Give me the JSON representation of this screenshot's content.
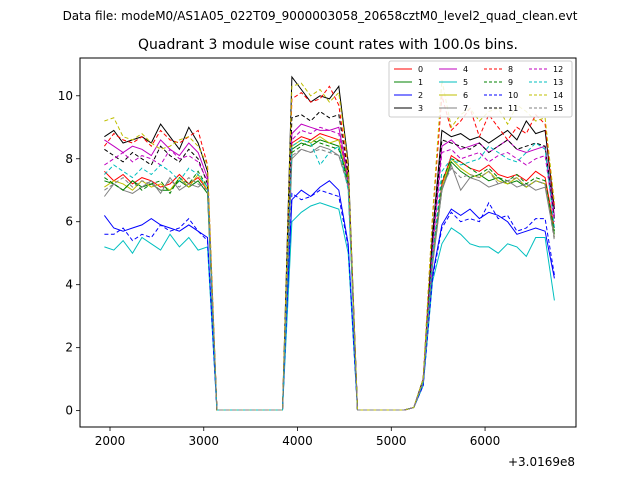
{
  "header": {
    "datafile": "Data file: modeM0/AS1A05_022T09_9000003058_20658cztM0_level2_quad_clean.evt"
  },
  "chart_data": {
    "type": "line",
    "title": "Quadrant 3 module wise count rates with 100.0s bins.",
    "xlabel": "",
    "ylabel": "",
    "x_offset_label": "+3.0169e8",
    "xlim": [
      1680,
      6970
    ],
    "ylim": [
      -0.52,
      11.2
    ],
    "x_ticks": [
      2000,
      3000,
      4000,
      5000,
      6000
    ],
    "x_tick_labels": [
      "2000",
      "3000",
      "4000",
      "5000",
      "6000"
    ],
    "y_ticks": [
      0,
      2,
      4,
      6,
      8,
      10
    ],
    "y_tick_labels": [
      "0",
      "2",
      "4",
      "6",
      "8",
      "10"
    ],
    "legend_position": "top-right",
    "x": [
      1940,
      2040,
      2140,
      2240,
      2340,
      2440,
      2540,
      2640,
      2740,
      2840,
      2940,
      3040,
      3140,
      3240,
      3340,
      3440,
      3540,
      3640,
      3740,
      3840,
      3940,
      4040,
      4140,
      4240,
      4340,
      4440,
      4540,
      4640,
      4740,
      4840,
      4940,
      5040,
      5140,
      5240,
      5340,
      5440,
      5540,
      5640,
      5740,
      5840,
      5940,
      6040,
      6140,
      6240,
      6340,
      6440,
      6540,
      6640,
      6740
    ],
    "series": [
      {
        "name": "0",
        "color": "#ff0000",
        "dash": false,
        "values": [
          7.6,
          7.3,
          7.5,
          7.2,
          7.4,
          7.3,
          7.1,
          7.2,
          7.5,
          7.2,
          7.4,
          7.0,
          0.02,
          0.02,
          0.02,
          0.02,
          0.02,
          0.02,
          0.02,
          0.02,
          8.5,
          8.7,
          8.6,
          8.8,
          8.7,
          8.6,
          7.5,
          0.02,
          0.02,
          0.02,
          0.02,
          0.02,
          0.02,
          0.1,
          0.9,
          4.8,
          7.2,
          8.1,
          7.9,
          7.7,
          7.6,
          7.8,
          7.5,
          7.4,
          7.5,
          7.3,
          7.6,
          7.4,
          5.8
        ]
      },
      {
        "name": "1",
        "color": "#008000",
        "dash": false,
        "values": [
          7.3,
          7.2,
          7.0,
          7.3,
          7.1,
          7.2,
          7.0,
          7.0,
          7.3,
          7.1,
          7.3,
          6.9,
          0.02,
          0.02,
          0.02,
          0.02,
          0.02,
          0.02,
          0.02,
          0.02,
          8.3,
          8.5,
          8.4,
          8.6,
          8.5,
          8.4,
          7.3,
          0.02,
          0.02,
          0.02,
          0.02,
          0.02,
          0.02,
          0.1,
          0.9,
          4.7,
          7.0,
          7.9,
          7.6,
          7.4,
          7.5,
          7.3,
          7.4,
          7.2,
          7.3,
          7.1,
          7.3,
          7.2,
          5.6
        ]
      },
      {
        "name": "2",
        "color": "#0000ff",
        "dash": false,
        "values": [
          6.2,
          5.8,
          5.7,
          5.8,
          5.9,
          6.1,
          5.9,
          5.8,
          5.7,
          5.9,
          5.7,
          5.5,
          0.02,
          0.02,
          0.02,
          0.02,
          0.02,
          0.02,
          0.02,
          0.02,
          6.7,
          7.0,
          6.8,
          7.1,
          7.3,
          7.0,
          5.3,
          0.02,
          0.02,
          0.02,
          0.02,
          0.02,
          0.02,
          0.1,
          0.8,
          4.3,
          5.9,
          6.4,
          6.2,
          6.4,
          6.1,
          6.3,
          6.2,
          6.0,
          5.6,
          5.7,
          5.8,
          5.7,
          4.2
        ]
      },
      {
        "name": "3",
        "color": "#000000",
        "dash": false,
        "values": [
          8.7,
          8.9,
          8.5,
          8.6,
          8.7,
          8.5,
          9.1,
          8.7,
          8.3,
          9.0,
          8.5,
          7.6,
          0.02,
          0.02,
          0.02,
          0.02,
          0.02,
          0.02,
          0.02,
          0.02,
          10.6,
          10.2,
          9.8,
          10.0,
          9.9,
          10.3,
          7.9,
          0.02,
          0.02,
          0.02,
          0.02,
          0.02,
          0.02,
          0.1,
          1.0,
          5.6,
          8.9,
          8.7,
          8.8,
          8.6,
          8.7,
          8.5,
          8.7,
          8.9,
          8.6,
          9.2,
          8.8,
          8.9,
          6.4
        ]
      },
      {
        "name": "4",
        "color": "#bf00bf",
        "dash": false,
        "values": [
          8.6,
          8.4,
          8.2,
          8.4,
          8.3,
          8.1,
          8.6,
          8.3,
          8.1,
          8.5,
          8.2,
          7.4,
          0.02,
          0.02,
          0.02,
          0.02,
          0.02,
          0.02,
          0.02,
          0.02,
          8.8,
          9.1,
          9.0,
          8.9,
          8.9,
          9.0,
          7.4,
          0.02,
          0.02,
          0.02,
          0.02,
          0.02,
          0.02,
          0.1,
          0.9,
          5.2,
          8.4,
          8.6,
          8.3,
          8.4,
          8.5,
          8.2,
          8.4,
          8.6,
          8.3,
          8.2,
          8.3,
          8.4,
          6.2
        ]
      },
      {
        "name": "5",
        "color": "#00bfbf",
        "dash": false,
        "values": [
          5.2,
          5.1,
          5.4,
          5.0,
          5.5,
          5.3,
          5.1,
          5.6,
          5.2,
          5.5,
          5.1,
          5.2,
          0.02,
          0.02,
          0.02,
          0.02,
          0.02,
          0.02,
          0.02,
          0.02,
          6.0,
          6.3,
          6.5,
          6.6,
          6.5,
          6.4,
          5.0,
          0.02,
          0.02,
          0.02,
          0.02,
          0.02,
          0.02,
          0.1,
          0.8,
          4.1,
          5.3,
          5.8,
          5.6,
          5.3,
          5.2,
          5.2,
          5.0,
          5.3,
          5.2,
          4.9,
          5.5,
          5.5,
          3.5
        ]
      },
      {
        "name": "6",
        "color": "#bfbf00",
        "dash": false,
        "values": [
          7.1,
          7.3,
          7.2,
          7.0,
          7.3,
          7.1,
          7.2,
          7.0,
          7.4,
          7.1,
          7.5,
          7.0,
          0.02,
          0.02,
          0.02,
          0.02,
          0.02,
          0.02,
          0.02,
          0.02,
          8.4,
          8.6,
          8.5,
          8.7,
          8.5,
          8.6,
          7.4,
          0.02,
          0.02,
          0.02,
          0.02,
          0.02,
          0.02,
          0.1,
          0.9,
          4.8,
          7.1,
          8.0,
          7.7,
          7.5,
          7.4,
          7.6,
          7.3,
          7.2,
          7.4,
          7.1,
          7.3,
          7.2,
          5.5
        ]
      },
      {
        "name": "7",
        "color": "#808080",
        "dash": false,
        "values": [
          6.8,
          7.2,
          7.0,
          6.9,
          7.1,
          7.3,
          6.9,
          7.4,
          7.0,
          7.2,
          7.1,
          7.3,
          0.02,
          0.02,
          0.02,
          0.02,
          0.02,
          0.02,
          0.02,
          0.02,
          8.0,
          8.3,
          8.2,
          8.4,
          8.3,
          8.1,
          7.2,
          0.02,
          0.02,
          0.02,
          0.02,
          0.02,
          0.02,
          0.1,
          0.9,
          4.6,
          7.0,
          7.8,
          7.0,
          7.4,
          7.3,
          7.1,
          7.2,
          7.3,
          7.1,
          7.2,
          7.0,
          7.1,
          5.5
        ]
      },
      {
        "name": "8",
        "color": "#ff0000",
        "dash": true,
        "values": [
          8.4,
          8.8,
          8.6,
          8.5,
          8.7,
          8.4,
          8.9,
          8.6,
          8.5,
          8.7,
          8.9,
          7.8,
          0.02,
          0.02,
          0.02,
          0.02,
          0.02,
          0.02,
          0.02,
          0.02,
          9.9,
          10.1,
          9.8,
          9.9,
          10.3,
          9.7,
          7.6,
          0.02,
          0.02,
          0.02,
          0.02,
          0.02,
          0.02,
          0.1,
          1.0,
          6.1,
          10.0,
          8.9,
          9.2,
          9.6,
          8.7,
          9.4,
          9.0,
          8.6,
          9.0,
          8.8,
          9.4,
          9.1,
          6.5
        ]
      },
      {
        "name": "9",
        "color": "#008000",
        "dash": true,
        "values": [
          7.4,
          7.2,
          7.0,
          7.3,
          7.0,
          7.2,
          7.3,
          6.9,
          7.4,
          7.2,
          7.6,
          7.1,
          0.02,
          0.02,
          0.02,
          0.02,
          0.02,
          0.02,
          0.02,
          0.02,
          8.2,
          8.4,
          8.6,
          8.5,
          8.4,
          8.3,
          7.2,
          0.02,
          0.02,
          0.02,
          0.02,
          0.02,
          0.02,
          0.1,
          0.9,
          4.9,
          7.3,
          8.0,
          7.9,
          7.7,
          7.5,
          7.7,
          7.4,
          7.3,
          7.5,
          7.2,
          7.4,
          7.3,
          5.7
        ]
      },
      {
        "name": "10",
        "color": "#0000ff",
        "dash": true,
        "values": [
          5.6,
          5.6,
          5.8,
          5.4,
          5.6,
          5.5,
          5.9,
          5.7,
          5.8,
          6.1,
          5.7,
          5.4,
          0.02,
          0.02,
          0.02,
          0.02,
          0.02,
          0.02,
          0.02,
          0.02,
          6.9,
          6.7,
          6.8,
          7.0,
          6.9,
          6.8,
          5.2,
          0.02,
          0.02,
          0.02,
          0.02,
          0.02,
          0.02,
          0.1,
          0.8,
          4.2,
          5.8,
          6.3,
          6.0,
          6.1,
          6.0,
          6.6,
          6.1,
          6.2,
          5.7,
          5.8,
          6.1,
          6.1,
          4.3
        ]
      },
      {
        "name": "11",
        "color": "#000000",
        "dash": true,
        "values": [
          8.3,
          8.1,
          7.9,
          8.2,
          8.0,
          7.8,
          8.4,
          8.1,
          7.9,
          8.3,
          8.0,
          7.2,
          0.02,
          0.02,
          0.02,
          0.02,
          0.02,
          0.02,
          0.02,
          0.02,
          9.3,
          9.4,
          9.2,
          9.5,
          9.3,
          9.4,
          7.5,
          0.02,
          0.02,
          0.02,
          0.02,
          0.02,
          0.02,
          0.1,
          1.0,
          5.4,
          8.6,
          8.5,
          8.4,
          8.3,
          8.5,
          8.2,
          8.4,
          8.6,
          8.3,
          8.4,
          8.5,
          8.4,
          6.1
        ]
      },
      {
        "name": "12",
        "color": "#bf00bf",
        "dash": true,
        "values": [
          7.8,
          8.0,
          8.2,
          7.9,
          8.1,
          8.0,
          7.8,
          8.3,
          8.0,
          8.1,
          7.9,
          7.3,
          0.02,
          0.02,
          0.02,
          0.02,
          0.02,
          0.02,
          0.02,
          0.02,
          8.6,
          8.9,
          8.8,
          9.0,
          8.9,
          8.8,
          7.3,
          0.02,
          0.02,
          0.02,
          0.02,
          0.02,
          0.02,
          0.1,
          0.9,
          5.1,
          8.2,
          8.3,
          8.0,
          8.1,
          8.2,
          7.9,
          8.1,
          8.2,
          8.0,
          7.8,
          8.0,
          8.1,
          6.0
        ]
      },
      {
        "name": "13",
        "color": "#00bfbf",
        "dash": true,
        "values": [
          7.5,
          7.8,
          7.6,
          7.4,
          7.7,
          7.5,
          7.8,
          7.6,
          7.3,
          7.7,
          7.5,
          7.1,
          0.02,
          0.02,
          0.02,
          0.02,
          0.02,
          0.02,
          0.02,
          0.02,
          8.4,
          8.6,
          8.5,
          7.8,
          8.2,
          8.4,
          7.0,
          0.02,
          0.02,
          0.02,
          0.02,
          0.02,
          0.02,
          0.1,
          0.9,
          4.9,
          7.6,
          8.0,
          7.8,
          7.9,
          8.0,
          8.4,
          8.2,
          8.0,
          7.9,
          8.2,
          8.5,
          8.3,
          5.8
        ]
      },
      {
        "name": "14",
        "color": "#bfbf00",
        "dash": true,
        "values": [
          9.2,
          9.3,
          8.7,
          8.6,
          8.8,
          8.5,
          8.3,
          8.4,
          8.6,
          8.7,
          8.4,
          7.8,
          0.02,
          0.02,
          0.02,
          0.02,
          0.02,
          0.02,
          0.02,
          0.02,
          10.3,
          10.4,
          10.0,
          10.2,
          9.8,
          10.1,
          7.8,
          0.02,
          0.02,
          0.02,
          0.02,
          0.02,
          0.02,
          0.1,
          1.0,
          6.2,
          10.5,
          9.0,
          9.4,
          9.6,
          9.2,
          9.5,
          9.6,
          9.1,
          9.7,
          9.5,
          9.2,
          9.3,
          6.6
        ]
      },
      {
        "name": "15",
        "color": "#808080",
        "dash": true,
        "values": [
          7.0,
          7.2,
          7.4,
          7.1,
          7.3,
          7.2,
          7.0,
          7.3,
          7.1,
          7.4,
          7.2,
          7.0,
          0.02,
          0.02,
          0.02,
          0.02,
          0.02,
          0.02,
          0.02,
          0.02,
          8.1,
          8.3,
          8.2,
          8.3,
          8.2,
          8.1,
          7.1,
          0.02,
          0.02,
          0.02,
          0.02,
          0.02,
          0.02,
          0.1,
          0.9,
          4.7,
          7.1,
          7.7,
          7.4,
          7.5,
          7.4,
          7.6,
          7.2,
          7.3,
          7.4,
          7.1,
          7.3,
          7.2,
          5.4
        ]
      }
    ]
  }
}
